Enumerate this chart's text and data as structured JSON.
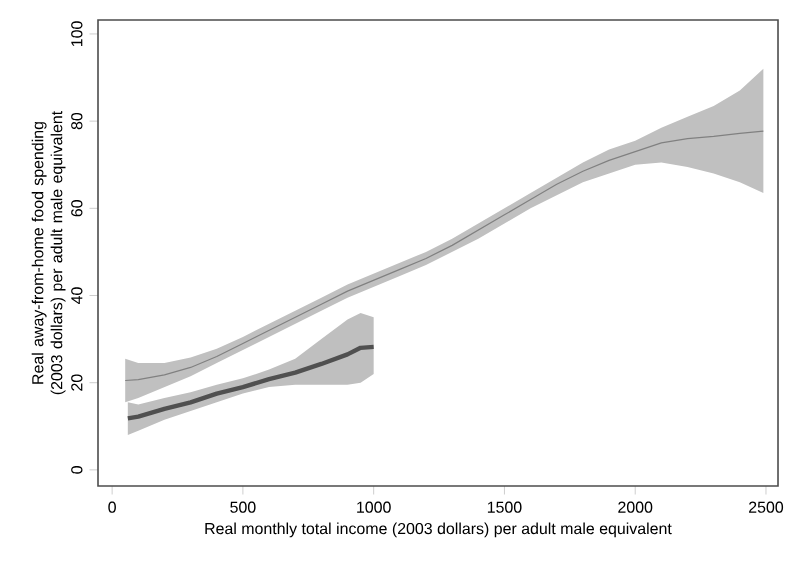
{
  "chart_data": {
    "type": "line",
    "xlabel": "Real monthly total income (2003 dollars) per adult male equivalent",
    "ylabel": "Real away-from-home food spending (2003 dollars) per adult male equivalent",
    "xlim": [
      -54,
      2546
    ],
    "ylim": [
      -3.7,
      103.2
    ],
    "xticks": [
      0,
      500,
      1000,
      1500,
      2000,
      2500
    ],
    "yticks": [
      0,
      20,
      40,
      60,
      80,
      100
    ],
    "grid": false,
    "series": [
      {
        "color": "#808080",
        "x": [
          50,
          100,
          200,
          300,
          400,
          500,
          600,
          700,
          800,
          900,
          1000,
          1100,
          1200,
          1300,
          1400,
          1500,
          1600,
          1700,
          1800,
          1900,
          2000,
          2100,
          2200,
          2300,
          2400,
          2490
        ],
        "values": [
          20.5,
          20.7,
          21.8,
          23.5,
          26,
          29,
          32,
          35,
          38,
          41,
          43.5,
          46,
          48.5,
          51.5,
          55,
          58.5,
          62,
          65.5,
          68.5,
          71,
          73,
          75,
          76,
          76.5,
          77.2,
          77.7
        ],
        "lower": [
          15.5,
          16.5,
          19,
          21.5,
          24.5,
          27.5,
          30.5,
          33.5,
          36.5,
          39.5,
          42,
          44.5,
          47,
          50,
          53,
          56.5,
          60,
          63,
          66,
          68,
          70,
          70.5,
          69.5,
          68,
          66,
          63.5
        ],
        "upper": [
          25.5,
          24.5,
          24.5,
          25.8,
          27.8,
          30.5,
          33.5,
          36.5,
          39.5,
          42.5,
          45,
          47.5,
          50,
          53,
          56.5,
          60,
          63.5,
          67,
          70.5,
          73.5,
          75.5,
          78.5,
          81,
          83.5,
          87,
          92
        ]
      },
      {
        "color": "#505050",
        "x": [
          60,
          100,
          200,
          300,
          400,
          500,
          600,
          700,
          800,
          900,
          950,
          1000
        ],
        "values": [
          11.8,
          12.2,
          14,
          15.5,
          17.5,
          19,
          20.8,
          22.3,
          24.3,
          26.5,
          28,
          28.2
        ],
        "lower": [
          8,
          9,
          11.5,
          13.5,
          15.5,
          17.5,
          19,
          19.5,
          19.5,
          19.5,
          20,
          22
        ],
        "upper": [
          15.5,
          15,
          16.5,
          17.8,
          19.5,
          21,
          23,
          25.5,
          30,
          34.5,
          36,
          35
        ]
      }
    ]
  }
}
